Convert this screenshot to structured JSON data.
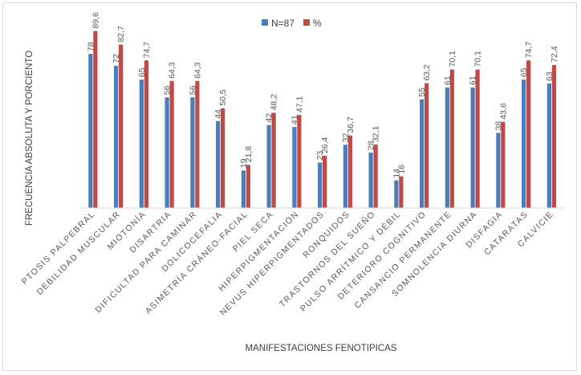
{
  "chart_data": {
    "type": "bar",
    "title": "",
    "xlabel": "MANIFESTACIONES FENOTIPICAS",
    "ylabel": "FRECUENCIA ABSOLUTA Y PORCIENTO",
    "ylim": [
      0,
      100
    ],
    "grid": false,
    "legend": "top",
    "categories": [
      "PTOSIS PALPEBRAL",
      "DEBILIDAD MUSCULAR",
      "MIOTONÍA",
      "DISARTRIA",
      "DIFICULTAD PARA CAMINAR",
      "DOLICOCEFALIA",
      "ASIMETRÍA CRÁNEO-FACIAL",
      "PIEL SECA",
      "HIPERPIGMENTACIÓN",
      "NEVUS HIPERPIGMENTADOS",
      "RONQUIDOS",
      "TRASTORNOS DEL SUEÑO",
      "PULSO ARRÍTMICO Y DÉBIL",
      "DETERIORO COGNITIVO",
      "CANSANCIO PERMANENTE",
      "SOMNOLENCIA DIURNA",
      "DISFAGIA",
      "CATARATAS",
      "CALVICIE"
    ],
    "series": [
      {
        "name": "N=87",
        "color": "#4a7ebb",
        "values": [
          78,
          72,
          65,
          56,
          56,
          44,
          19,
          42,
          41,
          23,
          32,
          28,
          14,
          55,
          61,
          61,
          38,
          65,
          63
        ],
        "labels": [
          "78",
          "72",
          "65",
          "56",
          "56",
          "44",
          "19",
          "42",
          "41",
          "23",
          "32",
          "28",
          "14",
          "55",
          "61",
          "61",
          "38",
          "65",
          "63"
        ]
      },
      {
        "name": "%",
        "color": "#be4b48",
        "values": [
          89.6,
          82.7,
          74.7,
          64.3,
          64.3,
          50.5,
          21.8,
          48.2,
          47.1,
          26.4,
          36.7,
          32.1,
          16,
          63.2,
          70.1,
          70.1,
          43.6,
          74.7,
          72.4
        ],
        "labels": [
          "89,6",
          "82,7",
          "74,7",
          "64,3",
          "64,3",
          "50,5",
          "21,8",
          "48,2",
          "47,1",
          "26,4",
          "36,7",
          "32,1",
          "16",
          "63,2",
          "70,1",
          "70,1",
          "43,6",
          "74,7",
          "72,4"
        ]
      }
    ]
  }
}
